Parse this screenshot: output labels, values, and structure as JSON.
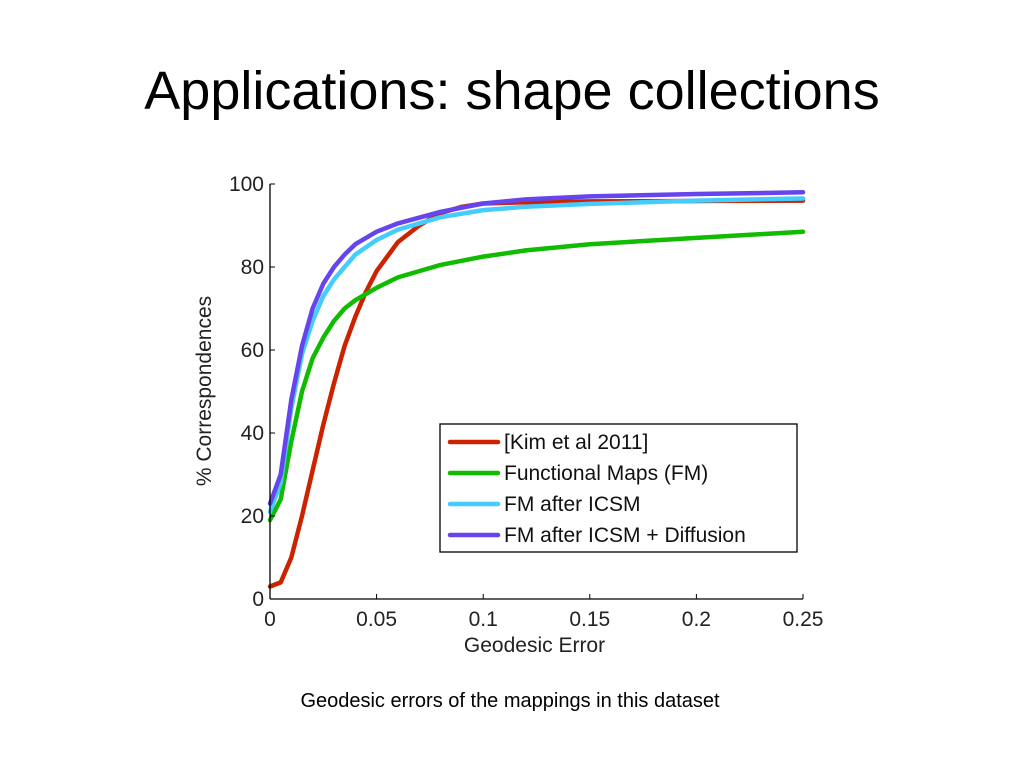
{
  "slide": {
    "title": "Applications: shape collections",
    "caption": "Geodesic errors of  the mappings in this dataset"
  },
  "chart_data": {
    "type": "line",
    "xlabel": "Geodesic Error",
    "ylabel": "% Correspondences",
    "xlim": [
      0,
      0.25
    ],
    "ylim": [
      0,
      100
    ],
    "x_ticks": [
      "0",
      "0.05",
      "0.1",
      "0.15",
      "0.2",
      "0.25"
    ],
    "y_ticks": [
      "0",
      "20",
      "40",
      "60",
      "80",
      "100"
    ],
    "grid": false,
    "legend_position": "lower-right inside plot",
    "series": [
      {
        "name": "[Kim et al 2011]",
        "color": "#cc2200",
        "x": [
          0,
          0.005,
          0.01,
          0.015,
          0.02,
          0.025,
          0.03,
          0.035,
          0.04,
          0.045,
          0.05,
          0.06,
          0.07,
          0.08,
          0.09,
          0.1,
          0.12,
          0.15,
          0.2,
          0.25
        ],
        "y": [
          3,
          4,
          10,
          20,
          31,
          42,
          52,
          61,
          68,
          74,
          79,
          86,
          90,
          93,
          94.5,
          95.3,
          95.6,
          95.8,
          95.9,
          96
        ]
      },
      {
        "name": "Functional Maps (FM)",
        "color": "#11bb00",
        "x": [
          0,
          0.005,
          0.01,
          0.015,
          0.02,
          0.025,
          0.03,
          0.035,
          0.04,
          0.05,
          0.06,
          0.08,
          0.1,
          0.12,
          0.15,
          0.2,
          0.25
        ],
        "y": [
          19,
          24,
          38,
          50,
          58,
          63,
          67,
          70,
          72,
          75,
          77.5,
          80.5,
          82.5,
          84,
          85.5,
          87,
          88.5
        ]
      },
      {
        "name": "FM after ICSM",
        "color": "#44ccff",
        "x": [
          0,
          0.005,
          0.01,
          0.015,
          0.02,
          0.025,
          0.03,
          0.035,
          0.04,
          0.05,
          0.06,
          0.08,
          0.1,
          0.12,
          0.15,
          0.2,
          0.25
        ],
        "y": [
          21,
          28,
          46,
          59,
          67,
          73,
          77,
          80,
          83,
          86.5,
          89,
          92,
          93.7,
          94.5,
          95.2,
          96,
          96.5
        ]
      },
      {
        "name": "FM after ICSM + Diffusion",
        "color": "#6644ee",
        "x": [
          0,
          0.005,
          0.01,
          0.015,
          0.02,
          0.025,
          0.03,
          0.035,
          0.04,
          0.05,
          0.06,
          0.08,
          0.1,
          0.12,
          0.15,
          0.2,
          0.25
        ],
        "y": [
          23,
          30,
          48,
          61,
          70,
          76,
          80,
          83,
          85.5,
          88.5,
          90.5,
          93.3,
          95.3,
          96.3,
          97,
          97.6,
          98
        ]
      }
    ]
  }
}
